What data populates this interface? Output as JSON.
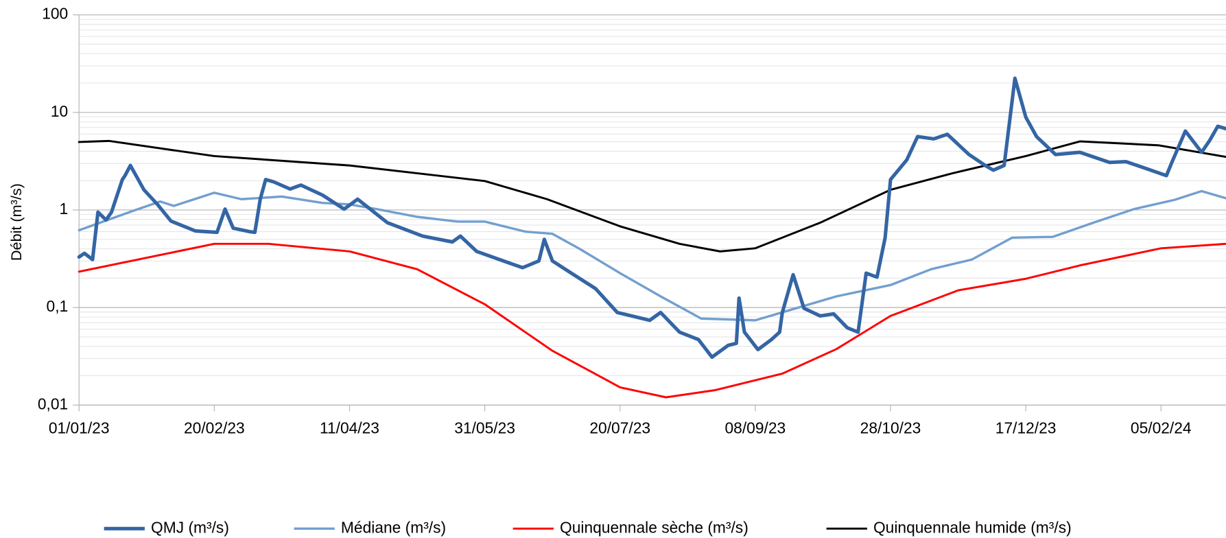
{
  "chart_data": {
    "type": "line",
    "y_label": "Débit (m³/s)",
    "log_scale": true,
    "grid": true,
    "legend": "bottom",
    "xlim": [
      "01/01/23",
      "29/02/24"
    ],
    "xticks": [
      "01/01/23",
      "20/02/23",
      "11/04/23",
      "31/05/23",
      "20/07/23",
      "08/09/23",
      "28/10/23",
      "17/12/23",
      "05/02/24"
    ],
    "ylim": [
      0.01,
      100
    ],
    "yticks": [
      {
        "value": 0.01,
        "label": "0,01"
      },
      {
        "value": 0.1,
        "label": "0,1"
      },
      1,
      10,
      100
    ],
    "series": [
      {
        "name": "QMJ (m³/s)",
        "color": "#3465a4",
        "x": [
          "01/01/23",
          "03/01/23",
          "06/01/23",
          "08/01/23",
          "11/01/23",
          "13/01/23",
          "17/01/23",
          "18/01/23",
          "20/01/23",
          "25/01/23",
          "30/01/23",
          "04/02/23",
          "13/02/23",
          "21/02/23",
          "24/02/23",
          "27/02/23",
          "05/03/23",
          "07/03/23",
          "09/03/23",
          "11/03/23",
          "14/03/23",
          "20/03/23",
          "24/03/23",
          "01/04/23",
          "09/04/23",
          "14/04/23",
          "25/04/23",
          "08/05/23",
          "19/05/23",
          "22/05/23",
          "28/05/23",
          "09/06/23",
          "14/06/23",
          "20/06/23",
          "22/06/23",
          "25/06/23",
          "02/07/23",
          "11/07/23",
          "19/07/23",
          "31/07/23",
          "04/08/23",
          "11/08/23",
          "18/08/23",
          "23/08/23",
          "29/08/23",
          "01/09/23",
          "02/09/23",
          "04/09/23",
          "09/09/23",
          "14/09/23",
          "17/09/23",
          "18/09/23",
          "22/09/23",
          "26/09/23",
          "02/10/23",
          "07/10/23",
          "12/10/23",
          "16/10/23",
          "19/10/23",
          "23/10/23",
          "26/10/23",
          "28/10/23",
          "03/11/23",
          "07/11/23",
          "13/11/23",
          "18/11/23",
          "26/11/23",
          "02/12/23",
          "05/12/23",
          "09/12/23",
          "13/12/23",
          "17/12/23",
          "21/12/23",
          "28/12/23",
          "06/01/24",
          "17/01/24",
          "23/01/24",
          "29/01/24",
          "07/02/24",
          "09/02/24",
          "14/02/24",
          "20/02/24",
          "23/02/24",
          "26/02/24",
          "29/02/24"
        ],
        "values": [
          0.33,
          0.36,
          0.31,
          0.95,
          0.79,
          0.95,
          2.05,
          2.25,
          2.86,
          1.61,
          1.14,
          0.77,
          0.61,
          0.59,
          1.02,
          0.65,
          0.6,
          0.59,
          1.29,
          2.05,
          1.94,
          1.64,
          1.8,
          1.42,
          1.02,
          1.29,
          0.74,
          0.54,
          0.47,
          0.54,
          0.376,
          0.286,
          0.256,
          0.3,
          0.5,
          0.3,
          0.225,
          0.156,
          0.089,
          0.074,
          0.089,
          0.056,
          0.047,
          0.031,
          0.041,
          0.043,
          0.125,
          0.056,
          0.037,
          0.047,
          0.056,
          0.089,
          0.217,
          0.098,
          0.082,
          0.086,
          0.062,
          0.056,
          0.225,
          0.205,
          0.52,
          2.05,
          3.25,
          5.65,
          5.35,
          5.97,
          3.7,
          2.86,
          2.56,
          2.86,
          22.4,
          8.95,
          5.65,
          3.7,
          3.9,
          3.07,
          3.13,
          2.75,
          2.25,
          3.07,
          6.44,
          3.9,
          5.16,
          7.2,
          6.8
        ]
      },
      {
        "name": "Médiane (m³/s)",
        "color": "#729fcf",
        "x": [
          "01/01/23",
          "21/01/23",
          "31/01/23",
          "05/02/23",
          "20/02/23",
          "02/03/23",
          "17/03/23",
          "01/04/23",
          "11/04/23",
          "21/04/23",
          "06/05/23",
          "21/05/23",
          "31/05/23",
          "15/06/23",
          "25/06/23",
          "05/07/23",
          "20/07/23",
          "04/08/23",
          "19/08/23",
          "08/09/23",
          "23/09/23",
          "08/10/23",
          "28/10/23",
          "12/11/23",
          "27/11/23",
          "12/12/23",
          "27/12/23",
          "11/01/24",
          "26/01/24",
          "10/02/24",
          "20/02/24",
          "29/02/24"
        ],
        "values": [
          0.62,
          0.98,
          1.22,
          1.1,
          1.5,
          1.29,
          1.37,
          1.18,
          1.14,
          1.02,
          0.85,
          0.76,
          0.76,
          0.6,
          0.57,
          0.4,
          0.225,
          0.13,
          0.077,
          0.074,
          0.098,
          0.13,
          0.17,
          0.247,
          0.31,
          0.52,
          0.53,
          0.74,
          1.02,
          1.27,
          1.56,
          1.32
        ]
      },
      {
        "name": "Quinquennale sèche (m³/s)",
        "color": "#ff0000",
        "x": [
          "01/01/23",
          "20/02/23",
          "12/03/23",
          "11/04/23",
          "06/05/23",
          "31/05/23",
          "25/06/23",
          "20/07/23",
          "06/08/23",
          "24/08/23",
          "18/09/23",
          "08/10/23",
          "28/10/23",
          "22/11/23",
          "17/12/23",
          "06/01/24",
          "05/02/24",
          "29/02/24"
        ],
        "values": [
          0.233,
          0.45,
          0.45,
          0.376,
          0.247,
          0.108,
          0.036,
          0.0152,
          0.012,
          0.0142,
          0.021,
          0.0375,
          0.082,
          0.15,
          0.197,
          0.27,
          0.405,
          0.45
        ]
      },
      {
        "name": "Quinquennale humide (m³/s)",
        "color": "#000000",
        "x": [
          "01/01/23",
          "12/01/23",
          "20/02/23",
          "11/04/23",
          "31/05/23",
          "23/06/23",
          "20/07/23",
          "11/08/23",
          "26/08/23",
          "08/09/23",
          "02/10/23",
          "28/10/23",
          "20/11/23",
          "17/12/23",
          "06/01/24",
          "04/02/24",
          "29/02/24"
        ],
        "values": [
          4.97,
          5.1,
          3.57,
          2.86,
          1.98,
          1.29,
          0.68,
          0.45,
          0.376,
          0.405,
          0.74,
          1.61,
          2.38,
          3.57,
          5.05,
          4.6,
          3.5
        ]
      }
    ]
  }
}
